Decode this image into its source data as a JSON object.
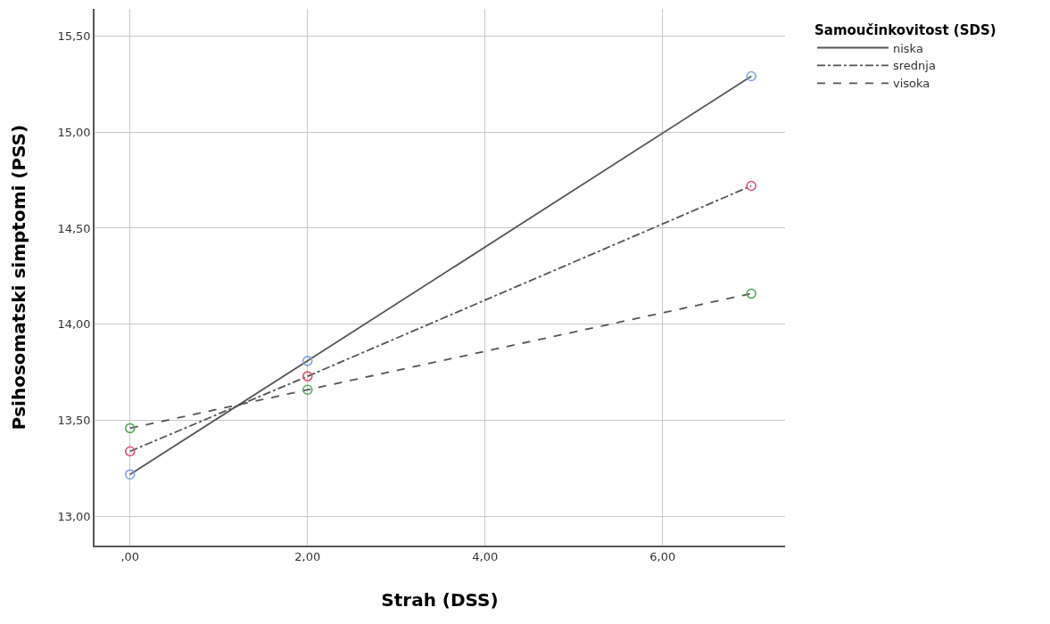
{
  "chart_data": {
    "type": "line",
    "xlabel": "Strah (DSS)",
    "ylabel": "Psihosomatski simptomi (PSS)",
    "legend_title": "Samoučinkovitost (SDS)",
    "x": [
      0,
      2,
      7
    ],
    "series": [
      {
        "name": "niska",
        "color": "#555555",
        "line_style": "solid",
        "colors": [
          "#7aa6e6",
          "#7aa6e6",
          "#7aa6e6"
        ],
        "values": [
          13.22,
          13.81,
          15.29
        ]
      },
      {
        "name": "srednja",
        "color": "#555555",
        "line_style": "dashdot",
        "colors": [
          "#e0506e",
          "#e0506e",
          "#e0506e"
        ],
        "values": [
          13.34,
          13.73,
          14.72
        ]
      },
      {
        "name": "visoka",
        "color": "#555555",
        "line_style": "dashed",
        "colors": [
          "#5aa85a",
          "#5aa85a",
          "#5aa85a"
        ],
        "values": [
          13.46,
          13.66,
          14.16
        ]
      }
    ],
    "xlim": [
      -0.4,
      7.38
    ],
    "ylim": [
      12.85,
      15.64
    ],
    "xticks": [
      {
        "value": 0,
        "label": ",00"
      },
      {
        "value": 2,
        "label": "2,00"
      },
      {
        "value": 4,
        "label": "4,00"
      },
      {
        "value": 6,
        "label": "6,00"
      }
    ],
    "yticks": [
      {
        "value": 13,
        "label": "13,00"
      },
      {
        "value": 13.5,
        "label": "13,50"
      },
      {
        "value": 14,
        "label": "14,00"
      },
      {
        "value": 14.5,
        "label": "14,50"
      },
      {
        "value": 15,
        "label": "15,00"
      },
      {
        "value": 15.5,
        "label": "15,50"
      }
    ],
    "grid": true,
    "legend": "top right",
    "marker": "circle"
  }
}
